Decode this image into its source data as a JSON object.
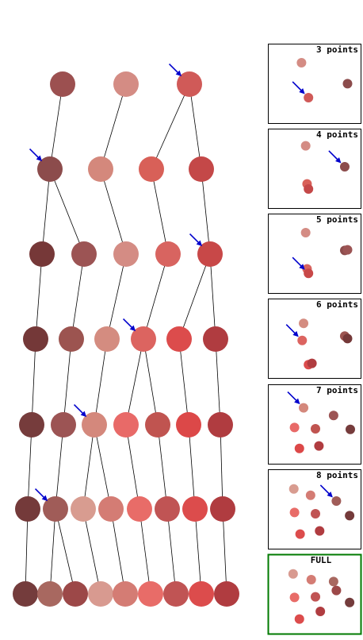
{
  "tree": {
    "levels": [
      {
        "nodes": [
          {
            "color": "#9c5050"
          },
          {
            "color": "#d48c84"
          },
          {
            "color": "#d05a58"
          }
        ]
      },
      {
        "nodes": [
          {
            "color": "#8c4c4c",
            "parent": 0
          },
          {
            "color": "#d4887c",
            "parent": 1
          },
          {
            "color": "#d86058",
            "parent": 2
          },
          {
            "color": "#c44848",
            "parent": 2
          }
        ]
      },
      {
        "nodes": [
          {
            "color": "#763838",
            "parent": 0
          },
          {
            "color": "#9c5454",
            "parent": 0
          },
          {
            "color": "#d48c84",
            "parent": 1
          },
          {
            "color": "#d86460",
            "parent": 2
          },
          {
            "color": "#c84848",
            "parent": 3
          }
        ]
      },
      {
        "nodes": [
          {
            "color": "#743838",
            "parent": 0
          },
          {
            "color": "#9c5450",
            "parent": 1
          },
          {
            "color": "#d48c80",
            "parent": 2
          },
          {
            "color": "#dc6460",
            "parent": 3
          },
          {
            "color": "#dc4c4c",
            "parent": 4
          },
          {
            "color": "#b03c40",
            "parent": 4
          }
        ]
      },
      {
        "nodes": [
          {
            "color": "#763c3c",
            "parent": 0
          },
          {
            "color": "#9c5454",
            "parent": 1
          },
          {
            "color": "#d4887c",
            "parent": 2
          },
          {
            "color": "#e86a68",
            "parent": 3
          },
          {
            "color": "#c05450",
            "parent": 3
          },
          {
            "color": "#dc4848",
            "parent": 4
          },
          {
            "color": "#b03c40",
            "parent": 5
          }
        ]
      },
      {
        "nodes": [
          {
            "color": "#743a3a",
            "parent": 0
          },
          {
            "color": "#a05c58",
            "parent": 1
          },
          {
            "color": "#d89c90",
            "parent": 2
          },
          {
            "color": "#d47c74",
            "parent": 2
          },
          {
            "color": "#e86c68",
            "parent": 3
          },
          {
            "color": "#c05454",
            "parent": 4
          },
          {
            "color": "#dc4c4c",
            "parent": 5
          },
          {
            "color": "#b03c40",
            "parent": 6
          }
        ]
      },
      {
        "nodes": [
          {
            "color": "#743c3c",
            "parent": 0
          },
          {
            "color": "#a86860",
            "parent": 1
          },
          {
            "color": "#9c4848",
            "parent": 1
          },
          {
            "color": "#d89a90",
            "parent": 2
          },
          {
            "color": "#d47c74",
            "parent": 3
          },
          {
            "color": "#e86c68",
            "parent": 4
          },
          {
            "color": "#c05454",
            "parent": 5
          },
          {
            "color": "#dc4c4c",
            "parent": 6
          },
          {
            "color": "#b03c40",
            "parent": 7
          }
        ]
      }
    ],
    "arrow_color": "#0000cc",
    "arrows": [
      {
        "level": 0,
        "node": 2
      },
      {
        "level": 1,
        "node": 0
      },
      {
        "level": 2,
        "node": 4
      },
      {
        "level": 3,
        "node": 3
      },
      {
        "level": 4,
        "node": 2
      },
      {
        "level": 5,
        "node": 1
      }
    ]
  },
  "panels": [
    {
      "label": "3 points",
      "border_color": "#000000",
      "points": [
        {
          "u": 0.3,
          "v": 0.15,
          "color": "#d48c84"
        },
        {
          "u": 0.96,
          "v": 0.48,
          "color": "#8c4c4c"
        },
        {
          "u": 0.4,
          "v": 0.7,
          "color": "#d05a58"
        }
      ],
      "arrow_to": 2
    },
    {
      "label": "4 points",
      "border_color": "#000000",
      "points": [
        {
          "u": 0.36,
          "v": 0.12,
          "color": "#d48c84"
        },
        {
          "u": 0.92,
          "v": 0.45,
          "color": "#8c4c4c"
        },
        {
          "u": 0.38,
          "v": 0.72,
          "color": "#d86058"
        },
        {
          "u": 0.4,
          "v": 0.8,
          "color": "#c44848"
        }
      ],
      "arrow_to": 1
    },
    {
      "label": "5 points",
      "border_color": "#000000",
      "points": [
        {
          "u": 0.36,
          "v": 0.15,
          "color": "#d48c84"
        },
        {
          "u": 0.92,
          "v": 0.43,
          "color": "#8c4c4c"
        },
        {
          "u": 0.96,
          "v": 0.42,
          "color": "#9c5454"
        },
        {
          "u": 0.38,
          "v": 0.72,
          "color": "#d86460"
        },
        {
          "u": 0.4,
          "v": 0.79,
          "color": "#c84848"
        }
      ],
      "arrow_to": 4
    },
    {
      "label": "6 points",
      "border_color": "#000000",
      "points": [
        {
          "u": 0.33,
          "v": 0.24,
          "color": "#d48c80"
        },
        {
          "u": 0.92,
          "v": 0.44,
          "color": "#9c5450"
        },
        {
          "u": 0.96,
          "v": 0.48,
          "color": "#743838"
        },
        {
          "u": 0.31,
          "v": 0.51,
          "color": "#dc6460"
        },
        {
          "u": 0.4,
          "v": 0.89,
          "color": "#dc4c4c"
        },
        {
          "u": 0.45,
          "v": 0.87,
          "color": "#b03c40"
        }
      ],
      "arrow_to": 3
    },
    {
      "label": "7 points",
      "border_color": "#000000",
      "points": [
        {
          "u": 0.33,
          "v": 0.22,
          "color": "#d4887c"
        },
        {
          "u": 0.76,
          "v": 0.34,
          "color": "#9c5454"
        },
        {
          "u": 0.2,
          "v": 0.53,
          "color": "#e86a68"
        },
        {
          "u": 0.5,
          "v": 0.55,
          "color": "#c05450"
        },
        {
          "u": 1.0,
          "v": 0.56,
          "color": "#763c3c"
        },
        {
          "u": 0.27,
          "v": 0.86,
          "color": "#dc4848"
        },
        {
          "u": 0.55,
          "v": 0.82,
          "color": "#b03c40"
        }
      ],
      "arrow_to": 0
    },
    {
      "label": "8 points",
      "border_color": "#000000",
      "points": [
        {
          "u": 0.19,
          "v": 0.16,
          "color": "#d89c90"
        },
        {
          "u": 0.43,
          "v": 0.26,
          "color": "#d47c74"
        },
        {
          "u": 0.8,
          "v": 0.35,
          "color": "#a05c58"
        },
        {
          "u": 0.2,
          "v": 0.53,
          "color": "#e86c68"
        },
        {
          "u": 0.5,
          "v": 0.55,
          "color": "#c05454"
        },
        {
          "u": 0.99,
          "v": 0.58,
          "color": "#743a3a"
        },
        {
          "u": 0.28,
          "v": 0.87,
          "color": "#dc4c4c"
        },
        {
          "u": 0.56,
          "v": 0.82,
          "color": "#b03c40"
        }
      ],
      "arrow_to": 2
    },
    {
      "label": "FULL",
      "border_color": "#007a00",
      "points": [
        {
          "u": 0.18,
          "v": 0.16,
          "color": "#d89a90"
        },
        {
          "u": 0.44,
          "v": 0.25,
          "color": "#d47c74"
        },
        {
          "u": 0.76,
          "v": 0.28,
          "color": "#a86860"
        },
        {
          "u": 0.8,
          "v": 0.42,
          "color": "#9c4848"
        },
        {
          "u": 0.2,
          "v": 0.53,
          "color": "#e86c68"
        },
        {
          "u": 0.5,
          "v": 0.52,
          "color": "#c05454"
        },
        {
          "u": 0.99,
          "v": 0.61,
          "color": "#743c3c"
        },
        {
          "u": 0.27,
          "v": 0.87,
          "color": "#dc4c4c"
        },
        {
          "u": 0.57,
          "v": 0.75,
          "color": "#b03c40"
        }
      ],
      "arrow_to": null
    }
  ]
}
